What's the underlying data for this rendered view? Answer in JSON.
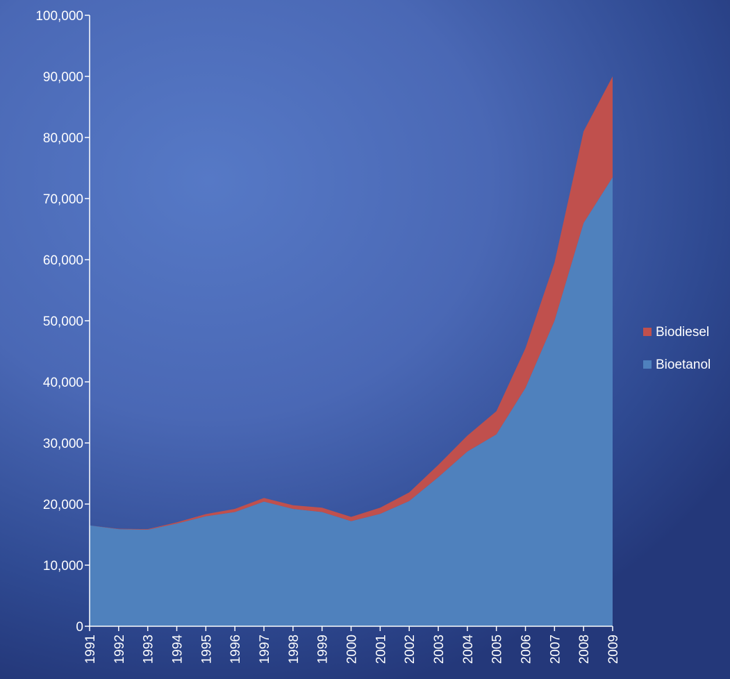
{
  "chart_data": {
    "type": "area",
    "stacked": true,
    "title": "",
    "xlabel": "",
    "ylabel": "",
    "ylim": [
      0,
      100000
    ],
    "y_ticks": [
      0,
      10000,
      20000,
      30000,
      40000,
      50000,
      60000,
      70000,
      80000,
      90000,
      100000
    ],
    "y_tick_labels": [
      "0",
      "10,000",
      "20,000",
      "30,000",
      "40,000",
      "50,000",
      "60,000",
      "70,000",
      "80,000",
      "90,000",
      "100,000"
    ],
    "categories": [
      "1991",
      "1992",
      "1993",
      "1994",
      "1995",
      "1996",
      "1997",
      "1998",
      "1999",
      "2000",
      "2001",
      "2002",
      "2003",
      "2004",
      "2005",
      "2006",
      "2007",
      "2008",
      "2009"
    ],
    "series": [
      {
        "name": "Bioetanol",
        "color": "#4f81bd",
        "values": [
          16500,
          15900,
          15800,
          16800,
          18000,
          18700,
          20400,
          19200,
          18700,
          17200,
          18400,
          20500,
          24400,
          28600,
          31400,
          39000,
          50000,
          66000,
          73500
        ]
      },
      {
        "name": "Biodiesel",
        "color": "#c0504d",
        "values": [
          0,
          50,
          100,
          200,
          350,
          500,
          600,
          600,
          700,
          700,
          1000,
          1400,
          2000,
          2600,
          3800,
          6500,
          9500,
          15000,
          16500
        ]
      }
    ],
    "legend": {
      "position": "right",
      "entries": [
        "Biodiesel",
        "Bioetanol"
      ]
    },
    "grid": false
  }
}
